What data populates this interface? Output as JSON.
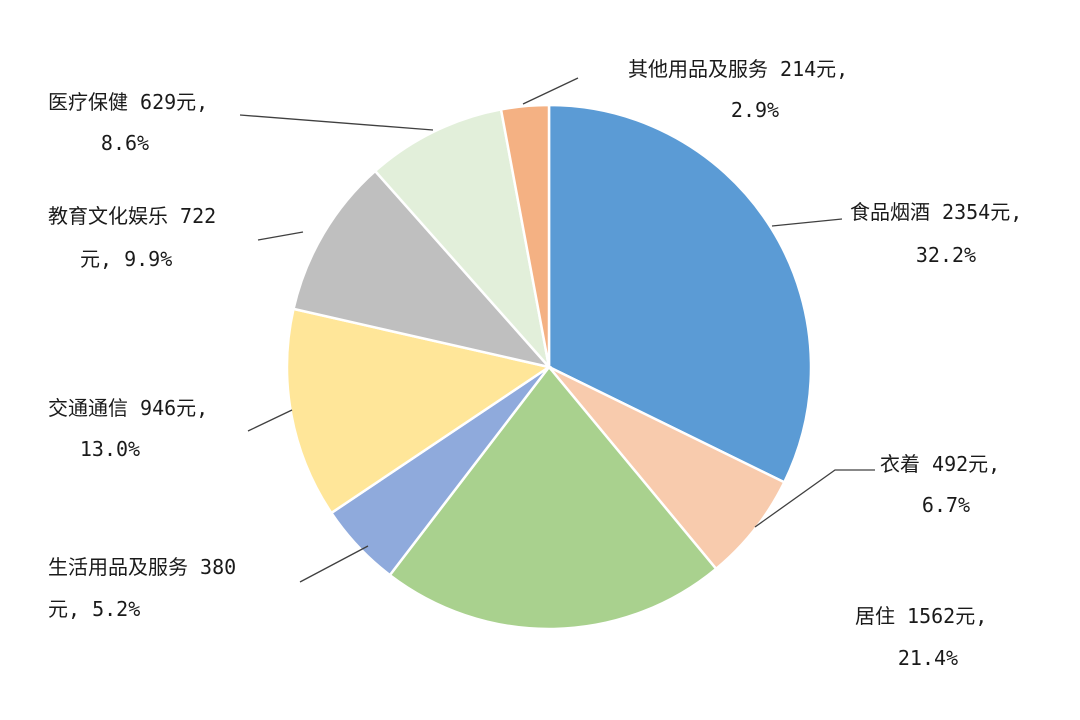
{
  "chart_data": {
    "type": "pie",
    "title": "",
    "legend": "none",
    "slices": [
      {
        "name": "食品烟酒",
        "amount": 2354,
        "percent": 32.2,
        "color": "#5B9BD5",
        "label_lines": [
          "食品烟酒 2354元,",
          "32.2%"
        ]
      },
      {
        "name": "衣着",
        "amount": 492,
        "percent": 6.7,
        "color": "#F8CBAD",
        "label_lines": [
          "衣着 492元,",
          "6.7%"
        ]
      },
      {
        "name": "居住",
        "amount": 1562,
        "percent": 21.4,
        "color": "#A9D18E",
        "label_lines": [
          "居住 1562元,",
          "21.4%"
        ]
      },
      {
        "name": "生活用品及服务",
        "amount": 380,
        "percent": 5.2,
        "color": "#8FAADC",
        "label_lines": [
          "生活用品及服务 380",
          "元, 5.2%"
        ]
      },
      {
        "name": "交通通信",
        "amount": 946,
        "percent": 13.0,
        "color": "#FFE699",
        "label_lines": [
          "交通通信 946元,",
          "13.0%"
        ]
      },
      {
        "name": "教育文化娱乐",
        "amount": 722,
        "percent": 9.9,
        "color": "#BFBFBF",
        "label_lines": [
          "教育文化娱乐 722",
          "元, 9.9%"
        ]
      },
      {
        "name": "医疗保健",
        "amount": 629,
        "percent": 8.6,
        "color": "#E2EFDA",
        "label_lines": [
          "医疗保健 629元,",
          "8.6%"
        ]
      },
      {
        "name": "其他用品及服务",
        "amount": 214,
        "percent": 2.9,
        "color": "#F4B183",
        "label_lines": [
          "其他用品及服务 214元,",
          "2.9%"
        ]
      }
    ]
  }
}
